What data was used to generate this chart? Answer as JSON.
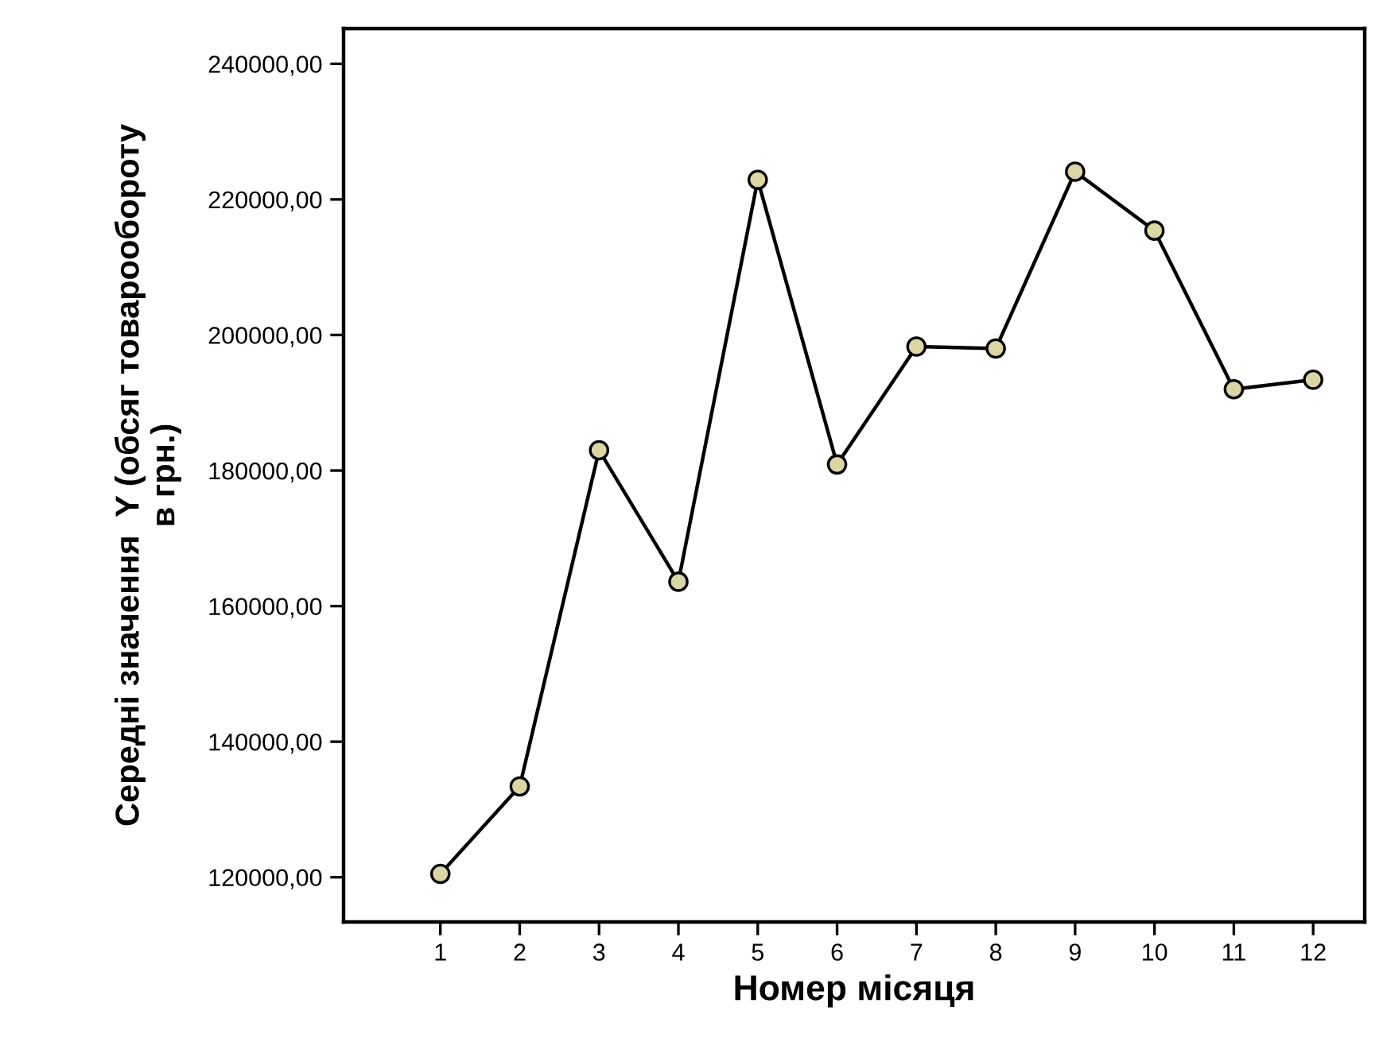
{
  "chart_data": {
    "type": "line",
    "xlabel": "Номер місяця",
    "ylabel": "Середні значення  Y (обсяг товарообороту\nв грн.)",
    "categories": [
      "1",
      "2",
      "3",
      "4",
      "5",
      "6",
      "7",
      "8",
      "9",
      "10",
      "11",
      "12"
    ],
    "series": [
      {
        "color": "#000000",
        "values": [
          120500,
          133400,
          183000,
          163600,
          222900,
          180900,
          198300,
          198000,
          224100,
          215400,
          192000,
          193400
        ]
      }
    ],
    "marker": "circle",
    "line_style": "solid",
    "grid": false,
    "legend": false,
    "ylim": [
      113400,
      245200
    ],
    "yticks": [
      {
        "value": 120000,
        "label": "120000,00"
      },
      {
        "value": 140000,
        "label": "140000,00"
      },
      {
        "value": 160000,
        "label": "160000,00"
      },
      {
        "value": 180000,
        "label": "180000,00"
      },
      {
        "value": 200000,
        "label": "200000,00"
      },
      {
        "value": 220000,
        "label": "220000,00"
      },
      {
        "value": 240000,
        "label": "240000,00"
      }
    ]
  }
}
